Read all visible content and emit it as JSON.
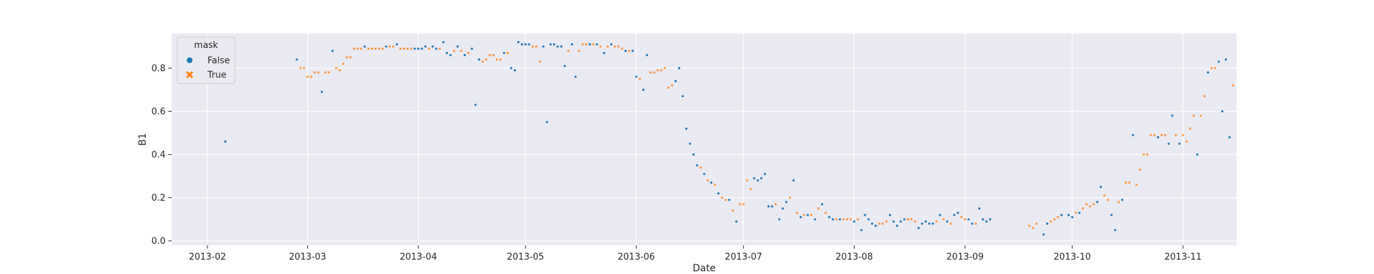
{
  "chart_data": {
    "type": "scatter",
    "xlabel": "Date",
    "ylabel": "B1",
    "xlim": [
      "2013-01-22",
      "2013-11-16"
    ],
    "ylim": [
      -0.02,
      0.96
    ],
    "x_ticks": [
      "2013-02-01",
      "2013-03-01",
      "2013-04-01",
      "2013-05-01",
      "2013-06-01",
      "2013-07-01",
      "2013-08-01",
      "2013-09-01",
      "2013-10-01",
      "2013-11-01"
    ],
    "x_tick_labels": [
      "2013-02",
      "2013-03",
      "2013-04",
      "2013-05",
      "2013-06",
      "2013-07",
      "2013-08",
      "2013-09",
      "2013-10",
      "2013-11"
    ],
    "y_ticks": [
      0.0,
      0.2,
      0.4,
      0.6,
      0.8
    ],
    "y_tick_labels": [
      "0.0",
      "0.2",
      "0.4",
      "0.6",
      "0.8"
    ],
    "grid": true,
    "legend": {
      "title": "mask",
      "placement": "upper-left"
    },
    "series": [
      {
        "name": "False",
        "marker": "circle",
        "color": "#1f77b4",
        "points": [
          [
            "2013-02-06",
            0.46
          ],
          [
            "2013-02-26",
            0.84
          ],
          [
            "2013-03-05",
            0.69
          ],
          [
            "2013-03-08",
            0.88
          ],
          [
            "2013-03-17",
            0.9
          ],
          [
            "2013-03-23",
            0.9
          ],
          [
            "2013-03-26",
            0.91
          ],
          [
            "2013-03-31",
            0.89
          ],
          [
            "2013-04-01",
            0.89
          ],
          [
            "2013-04-02",
            0.89
          ],
          [
            "2013-04-03",
            0.9
          ],
          [
            "2013-04-05",
            0.9
          ],
          [
            "2013-04-06",
            0.89
          ],
          [
            "2013-04-08",
            0.92
          ],
          [
            "2013-04-09",
            0.87
          ],
          [
            "2013-04-10",
            0.86
          ],
          [
            "2013-04-12",
            0.9
          ],
          [
            "2013-04-14",
            0.86
          ],
          [
            "2013-04-16",
            0.89
          ],
          [
            "2013-04-17",
            0.63
          ],
          [
            "2013-04-18",
            0.84
          ],
          [
            "2013-04-25",
            0.87
          ],
          [
            "2013-04-27",
            0.8
          ],
          [
            "2013-04-28",
            0.79
          ],
          [
            "2013-04-29",
            0.92
          ],
          [
            "2013-04-30",
            0.91
          ],
          [
            "2013-05-01",
            0.91
          ],
          [
            "2013-05-02",
            0.91
          ],
          [
            "2013-05-06",
            0.9
          ],
          [
            "2013-05-07",
            0.55
          ],
          [
            "2013-05-08",
            0.91
          ],
          [
            "2013-05-09",
            0.91
          ],
          [
            "2013-05-10",
            0.9
          ],
          [
            "2013-05-11",
            0.9
          ],
          [
            "2013-05-12",
            0.81
          ],
          [
            "2013-05-14",
            0.91
          ],
          [
            "2013-05-15",
            0.76
          ],
          [
            "2013-05-19",
            0.91
          ],
          [
            "2013-05-21",
            0.91
          ],
          [
            "2013-05-23",
            0.87
          ],
          [
            "2013-05-25",
            0.91
          ],
          [
            "2013-05-29",
            0.88
          ],
          [
            "2013-05-31",
            0.88
          ],
          [
            "2013-06-01",
            0.76
          ],
          [
            "2013-06-03",
            0.7
          ],
          [
            "2013-06-04",
            0.86
          ],
          [
            "2013-06-12",
            0.74
          ],
          [
            "2013-06-13",
            0.8
          ],
          [
            "2013-06-14",
            0.67
          ],
          [
            "2013-06-15",
            0.52
          ],
          [
            "2013-06-16",
            0.45
          ],
          [
            "2013-06-17",
            0.4
          ],
          [
            "2013-06-18",
            0.35
          ],
          [
            "2013-06-20",
            0.31
          ],
          [
            "2013-06-22",
            0.27
          ],
          [
            "2013-06-24",
            0.22
          ],
          [
            "2013-06-27",
            0.19
          ],
          [
            "2013-06-29",
            0.09
          ],
          [
            "2013-07-04",
            0.29
          ],
          [
            "2013-07-05",
            0.28
          ],
          [
            "2013-07-06",
            0.29
          ],
          [
            "2013-07-07",
            0.31
          ],
          [
            "2013-07-08",
            0.16
          ],
          [
            "2013-07-09",
            0.16
          ],
          [
            "2013-07-11",
            0.1
          ],
          [
            "2013-07-12",
            0.15
          ],
          [
            "2013-07-13",
            0.18
          ],
          [
            "2013-07-15",
            0.28
          ],
          [
            "2013-07-17",
            0.11
          ],
          [
            "2013-07-19",
            0.12
          ],
          [
            "2013-07-21",
            0.1
          ],
          [
            "2013-07-23",
            0.17
          ],
          [
            "2013-07-25",
            0.11
          ],
          [
            "2013-07-26",
            0.1
          ],
          [
            "2013-07-28",
            0.1
          ],
          [
            "2013-08-01",
            0.09
          ],
          [
            "2013-08-03",
            0.05
          ],
          [
            "2013-08-04",
            0.12
          ],
          [
            "2013-08-05",
            0.1
          ],
          [
            "2013-08-06",
            0.08
          ],
          [
            "2013-08-07",
            0.07
          ],
          [
            "2013-08-11",
            0.12
          ],
          [
            "2013-08-12",
            0.09
          ],
          [
            "2013-08-13",
            0.07
          ],
          [
            "2013-08-14",
            0.09
          ],
          [
            "2013-08-15",
            0.1
          ],
          [
            "2013-08-19",
            0.06
          ],
          [
            "2013-08-20",
            0.08
          ],
          [
            "2013-08-21",
            0.09
          ],
          [
            "2013-08-22",
            0.08
          ],
          [
            "2013-08-23",
            0.08
          ],
          [
            "2013-08-25",
            0.12
          ],
          [
            "2013-08-27",
            0.09
          ],
          [
            "2013-08-29",
            0.12
          ],
          [
            "2013-08-30",
            0.13
          ],
          [
            "2013-09-02",
            0.1
          ],
          [
            "2013-09-03",
            0.08
          ],
          [
            "2013-09-05",
            0.15
          ],
          [
            "2013-09-06",
            0.1
          ],
          [
            "2013-09-07",
            0.09
          ],
          [
            "2013-09-08",
            0.1
          ],
          [
            "2013-09-23",
            0.03
          ],
          [
            "2013-09-24",
            0.08
          ],
          [
            "2013-09-28",
            0.12
          ],
          [
            "2013-09-30",
            0.12
          ],
          [
            "2013-10-01",
            0.11
          ],
          [
            "2013-10-03",
            0.13
          ],
          [
            "2013-10-08",
            0.18
          ],
          [
            "2013-10-09",
            0.25
          ],
          [
            "2013-10-12",
            0.12
          ],
          [
            "2013-10-13",
            0.05
          ],
          [
            "2013-10-15",
            0.19
          ],
          [
            "2013-10-18",
            0.49
          ],
          [
            "2013-10-25",
            0.48
          ],
          [
            "2013-10-28",
            0.45
          ],
          [
            "2013-10-29",
            0.58
          ],
          [
            "2013-10-31",
            0.45
          ],
          [
            "2013-11-05",
            0.4
          ],
          [
            "2013-11-08",
            0.78
          ],
          [
            "2013-11-11",
            0.83
          ],
          [
            "2013-11-12",
            0.6
          ],
          [
            "2013-11-13",
            0.84
          ],
          [
            "2013-11-14",
            0.48
          ]
        ]
      },
      {
        "name": "True",
        "marker": "x",
        "color": "#ff7f0e",
        "points": [
          [
            "2013-02-27",
            0.8
          ],
          [
            "2013-02-28",
            0.8
          ],
          [
            "2013-03-01",
            0.76
          ],
          [
            "2013-03-02",
            0.76
          ],
          [
            "2013-03-03",
            0.78
          ],
          [
            "2013-03-04",
            0.78
          ],
          [
            "2013-03-06",
            0.78
          ],
          [
            "2013-03-07",
            0.78
          ],
          [
            "2013-03-09",
            0.8
          ],
          [
            "2013-03-10",
            0.79
          ],
          [
            "2013-03-11",
            0.82
          ],
          [
            "2013-03-12",
            0.85
          ],
          [
            "2013-03-13",
            0.85
          ],
          [
            "2013-03-14",
            0.89
          ],
          [
            "2013-03-15",
            0.89
          ],
          [
            "2013-03-16",
            0.89
          ],
          [
            "2013-03-18",
            0.89
          ],
          [
            "2013-03-19",
            0.89
          ],
          [
            "2013-03-20",
            0.89
          ],
          [
            "2013-03-21",
            0.89
          ],
          [
            "2013-03-22",
            0.89
          ],
          [
            "2013-03-24",
            0.9
          ],
          [
            "2013-03-25",
            0.9
          ],
          [
            "2013-03-27",
            0.89
          ],
          [
            "2013-03-28",
            0.89
          ],
          [
            "2013-03-29",
            0.89
          ],
          [
            "2013-03-30",
            0.89
          ],
          [
            "2013-04-04",
            0.89
          ],
          [
            "2013-04-07",
            0.89
          ],
          [
            "2013-04-11",
            0.88
          ],
          [
            "2013-04-13",
            0.88
          ],
          [
            "2013-04-15",
            0.87
          ],
          [
            "2013-04-19",
            0.83
          ],
          [
            "2013-04-20",
            0.84
          ],
          [
            "2013-04-21",
            0.86
          ],
          [
            "2013-04-22",
            0.86
          ],
          [
            "2013-04-23",
            0.84
          ],
          [
            "2013-04-24",
            0.84
          ],
          [
            "2013-04-26",
            0.87
          ],
          [
            "2013-05-03",
            0.9
          ],
          [
            "2013-05-04",
            0.9
          ],
          [
            "2013-05-05",
            0.83
          ],
          [
            "2013-05-13",
            0.88
          ],
          [
            "2013-05-16",
            0.88
          ],
          [
            "2013-05-17",
            0.91
          ],
          [
            "2013-05-18",
            0.91
          ],
          [
            "2013-05-20",
            0.91
          ],
          [
            "2013-05-22",
            0.9
          ],
          [
            "2013-05-24",
            0.9
          ],
          [
            "2013-05-26",
            0.9
          ],
          [
            "2013-05-27",
            0.9
          ],
          [
            "2013-05-28",
            0.89
          ],
          [
            "2013-05-30",
            0.88
          ],
          [
            "2013-06-02",
            0.75
          ],
          [
            "2013-06-05",
            0.78
          ],
          [
            "2013-06-06",
            0.78
          ],
          [
            "2013-06-07",
            0.79
          ],
          [
            "2013-06-08",
            0.79
          ],
          [
            "2013-06-09",
            0.8
          ],
          [
            "2013-06-10",
            0.71
          ],
          [
            "2013-06-11",
            0.72
          ],
          [
            "2013-06-19",
            0.34
          ],
          [
            "2013-06-21",
            0.28
          ],
          [
            "2013-06-23",
            0.26
          ],
          [
            "2013-06-25",
            0.2
          ],
          [
            "2013-06-26",
            0.19
          ],
          [
            "2013-06-28",
            0.14
          ],
          [
            "2013-06-30",
            0.17
          ],
          [
            "2013-07-01",
            0.17
          ],
          [
            "2013-07-02",
            0.28
          ],
          [
            "2013-07-03",
            0.24
          ],
          [
            "2013-07-10",
            0.17
          ],
          [
            "2013-07-14",
            0.2
          ],
          [
            "2013-07-16",
            0.13
          ],
          [
            "2013-07-18",
            0.12
          ],
          [
            "2013-07-20",
            0.12
          ],
          [
            "2013-07-22",
            0.15
          ],
          [
            "2013-07-24",
            0.13
          ],
          [
            "2013-07-27",
            0.1
          ],
          [
            "2013-07-29",
            0.1
          ],
          [
            "2013-07-30",
            0.1
          ],
          [
            "2013-07-31",
            0.1
          ],
          [
            "2013-08-02",
            0.1
          ],
          [
            "2013-08-08",
            0.08
          ],
          [
            "2013-08-09",
            0.08
          ],
          [
            "2013-08-10",
            0.09
          ],
          [
            "2013-08-16",
            0.1
          ],
          [
            "2013-08-17",
            0.1
          ],
          [
            "2013-08-18",
            0.09
          ],
          [
            "2013-08-24",
            0.09
          ],
          [
            "2013-08-26",
            0.1
          ],
          [
            "2013-08-28",
            0.08
          ],
          [
            "2013-08-31",
            0.11
          ],
          [
            "2013-09-01",
            0.1
          ],
          [
            "2013-09-04",
            0.08
          ],
          [
            "2013-09-19",
            0.07
          ],
          [
            "2013-09-20",
            0.06
          ],
          [
            "2013-09-21",
            0.08
          ],
          [
            "2013-09-25",
            0.09
          ],
          [
            "2013-09-26",
            0.1
          ],
          [
            "2013-09-27",
            0.11
          ],
          [
            "2013-10-02",
            0.13
          ],
          [
            "2013-10-04",
            0.15
          ],
          [
            "2013-10-05",
            0.17
          ],
          [
            "2013-10-06",
            0.16
          ],
          [
            "2013-10-07",
            0.17
          ],
          [
            "2013-10-10",
            0.21
          ],
          [
            "2013-10-11",
            0.19
          ],
          [
            "2013-10-14",
            0.18
          ],
          [
            "2013-10-16",
            0.27
          ],
          [
            "2013-10-17",
            0.27
          ],
          [
            "2013-10-19",
            0.26
          ],
          [
            "2013-10-20",
            0.33
          ],
          [
            "2013-10-21",
            0.4
          ],
          [
            "2013-10-22",
            0.4
          ],
          [
            "2013-10-23",
            0.49
          ],
          [
            "2013-10-24",
            0.49
          ],
          [
            "2013-10-26",
            0.49
          ],
          [
            "2013-10-27",
            0.49
          ],
          [
            "2013-10-30",
            0.49
          ],
          [
            "2013-11-01",
            0.49
          ],
          [
            "2013-11-02",
            0.46
          ],
          [
            "2013-11-03",
            0.52
          ],
          [
            "2013-11-04",
            0.58
          ],
          [
            "2013-11-06",
            0.58
          ],
          [
            "2013-11-07",
            0.67
          ],
          [
            "2013-11-09",
            0.8
          ],
          [
            "2013-11-10",
            0.8
          ],
          [
            "2013-11-15",
            0.72
          ]
        ]
      }
    ]
  }
}
